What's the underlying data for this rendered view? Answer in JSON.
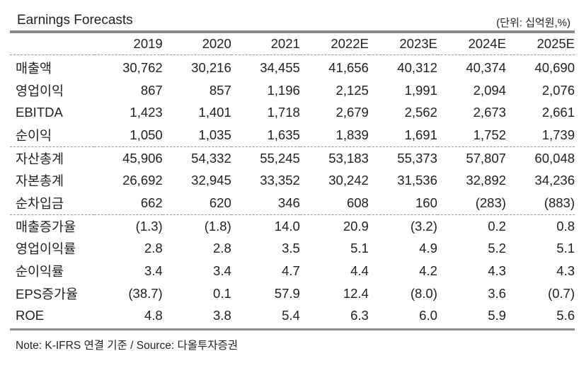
{
  "title": "Earnings Forecasts",
  "unit": "(단위: 십억원,%)",
  "columns": [
    "2019",
    "2020",
    "2021",
    "2022E",
    "2023E",
    "2024E",
    "2025E"
  ],
  "groups": [
    [
      {
        "label": "매출액",
        "values": [
          "30,762",
          "30,216",
          "34,455",
          "41,656",
          "40,312",
          "40,374",
          "40,690"
        ]
      },
      {
        "label": "영업이익",
        "values": [
          "867",
          "857",
          "1,196",
          "2,125",
          "1,991",
          "2,094",
          "2,076"
        ]
      },
      {
        "label": "EBITDA",
        "values": [
          "1,423",
          "1,401",
          "1,718",
          "2,679",
          "2,562",
          "2,673",
          "2,661"
        ]
      },
      {
        "label": "순이익",
        "values": [
          "1,050",
          "1,035",
          "1,635",
          "1,839",
          "1,691",
          "1,752",
          "1,739"
        ]
      }
    ],
    [
      {
        "label": "자산총계",
        "values": [
          "45,906",
          "54,332",
          "55,245",
          "53,183",
          "55,373",
          "57,807",
          "60,048"
        ]
      },
      {
        "label": "자본총계",
        "values": [
          "26,692",
          "32,945",
          "33,352",
          "30,242",
          "31,536",
          "32,892",
          "34,236"
        ]
      },
      {
        "label": "순차입금",
        "values": [
          "662",
          "620",
          "346",
          "608",
          "160",
          "(283)",
          "(883)"
        ]
      }
    ],
    [
      {
        "label": "매출증가율",
        "values": [
          "(1.3)",
          "(1.8)",
          "14.0",
          "20.9",
          "(3.2)",
          "0.2",
          "0.8"
        ]
      },
      {
        "label": "영업이익률",
        "values": [
          "2.8",
          "2.8",
          "3.5",
          "5.1",
          "4.9",
          "5.2",
          "5.1"
        ]
      },
      {
        "label": "순이익률",
        "values": [
          "3.4",
          "3.4",
          "4.7",
          "4.4",
          "4.2",
          "4.3",
          "4.3"
        ]
      },
      {
        "label": "EPS증가율",
        "values": [
          "(38.7)",
          "0.1",
          "57.9",
          "12.4",
          "(8.0)",
          "3.6",
          "(0.7)"
        ]
      },
      {
        "label": "ROE",
        "values": [
          "4.8",
          "3.8",
          "5.4",
          "6.3",
          "6.0",
          "5.9",
          "5.6"
        ]
      }
    ]
  ],
  "note": "Note: K-IFRS 연결 기준 / Source: 다올투자증권"
}
